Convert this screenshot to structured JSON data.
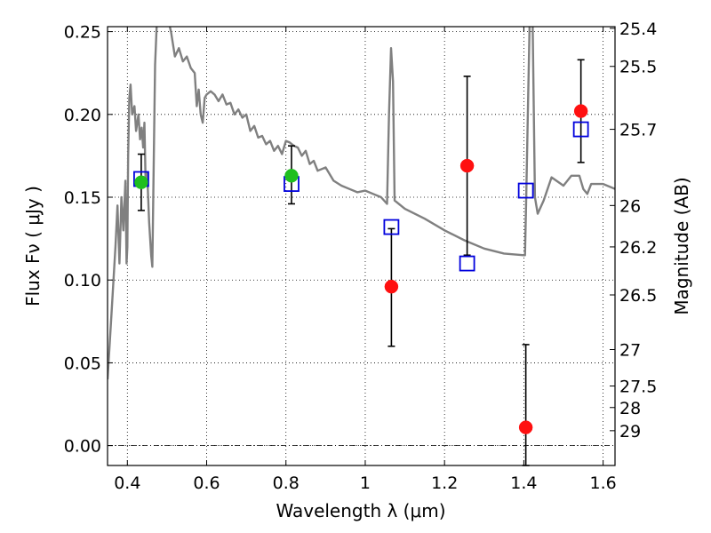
{
  "chart_data": {
    "type": "scatter",
    "title": "",
    "xlabel": "Wavelength  λ (μm)",
    "ylabel": "Flux  Fν  ( μJy )",
    "ylabel2": "Magnitude (AB)",
    "xlim": [
      0.35,
      1.63
    ],
    "ylim": [
      -0.012,
      0.253
    ],
    "grid": true,
    "legend": "none",
    "x_ticks": [
      0.4,
      0.6,
      0.8,
      1.0,
      1.2,
      1.4,
      1.6
    ],
    "x_tick_labels": [
      "0.4",
      "0.6",
      "0.8",
      "1",
      "1.2",
      "1.4",
      "1.6"
    ],
    "y_ticks": [
      0.0,
      0.05,
      0.1,
      0.15,
      0.2,
      0.25
    ],
    "y_tick_labels": [
      "0.00",
      "0.05",
      "0.10",
      "0.15",
      "0.20",
      "0.25"
    ],
    "mag_ticks": [
      {
        "label": "25.4",
        "flux": 0.252
      },
      {
        "label": "25.5",
        "flux": 0.229
      },
      {
        "label": "25.7",
        "flux": 0.191
      },
      {
        "label": "26",
        "flux": 0.145
      },
      {
        "label": "26.2",
        "flux": 0.12
      },
      {
        "label": "26.5",
        "flux": 0.091
      },
      {
        "label": "27",
        "flux": 0.058
      },
      {
        "label": "27.5",
        "flux": 0.036
      },
      {
        "label": "28",
        "flux": 0.023
      },
      {
        "label": "29",
        "flux": 0.009
      }
    ],
    "series": [
      {
        "marker": "circle",
        "color": "#1fbf1f",
        "points": [
          {
            "x": 0.435,
            "y": 0.159,
            "ylo": 0.142,
            "yhi": 0.176
          },
          {
            "x": 0.814,
            "y": 0.163,
            "ylo": 0.146,
            "yhi": 0.181
          }
        ]
      },
      {
        "marker": "circle",
        "color": "#ff1010",
        "points": [
          {
            "x": 1.066,
            "y": 0.096,
            "ylo": 0.06,
            "yhi": 0.131
          },
          {
            "x": 1.257,
            "y": 0.169,
            "ylo": 0.115,
            "yhi": 0.223
          },
          {
            "x": 1.405,
            "y": 0.011,
            "ylo": -0.012,
            "yhi": 0.061
          },
          {
            "x": 1.544,
            "y": 0.202,
            "ylo": 0.171,
            "yhi": 0.233
          }
        ]
      },
      {
        "marker": "square",
        "color": "#0000dd",
        "points": [
          {
            "x": 0.435,
            "y": 0.161
          },
          {
            "x": 0.814,
            "y": 0.158
          },
          {
            "x": 1.066,
            "y": 0.132
          },
          {
            "x": 1.257,
            "y": 0.11
          },
          {
            "x": 1.405,
            "y": 0.154
          },
          {
            "x": 1.544,
            "y": 0.191
          }
        ]
      },
      {
        "marker": "line",
        "color": "#808080",
        "points": [
          [
            0.35,
            0.04
          ],
          [
            0.36,
            0.08
          ],
          [
            0.37,
            0.12
          ],
          [
            0.375,
            0.145
          ],
          [
            0.38,
            0.11
          ],
          [
            0.385,
            0.15
          ],
          [
            0.39,
            0.13
          ],
          [
            0.395,
            0.16
          ],
          [
            0.398,
            0.11
          ],
          [
            0.4,
            0.12
          ],
          [
            0.402,
            0.175
          ],
          [
            0.405,
            0.21
          ],
          [
            0.408,
            0.218
          ],
          [
            0.412,
            0.2
          ],
          [
            0.418,
            0.205
          ],
          [
            0.422,
            0.19
          ],
          [
            0.428,
            0.2
          ],
          [
            0.432,
            0.185
          ],
          [
            0.436,
            0.192
          ],
          [
            0.44,
            0.18
          ],
          [
            0.443,
            0.195
          ],
          [
            0.446,
            0.16
          ],
          [
            0.45,
            0.165
          ],
          [
            0.455,
            0.135
          ],
          [
            0.46,
            0.115
          ],
          [
            0.463,
            0.108
          ],
          [
            0.466,
            0.16
          ],
          [
            0.47,
            0.23
          ],
          [
            0.475,
            0.26
          ],
          [
            0.48,
            0.27
          ],
          [
            0.49,
            0.255
          ],
          [
            0.5,
            0.26
          ],
          [
            0.51,
            0.25
          ],
          [
            0.52,
            0.235
          ],
          [
            0.53,
            0.24
          ],
          [
            0.54,
            0.232
          ],
          [
            0.55,
            0.235
          ],
          [
            0.56,
            0.228
          ],
          [
            0.57,
            0.225
          ],
          [
            0.575,
            0.205
          ],
          [
            0.58,
            0.215
          ],
          [
            0.585,
            0.2
          ],
          [
            0.59,
            0.195
          ],
          [
            0.595,
            0.21
          ],
          [
            0.6,
            0.212
          ],
          [
            0.61,
            0.214
          ],
          [
            0.62,
            0.212
          ],
          [
            0.63,
            0.208
          ],
          [
            0.64,
            0.212
          ],
          [
            0.65,
            0.206
          ],
          [
            0.66,
            0.207
          ],
          [
            0.67,
            0.2
          ],
          [
            0.68,
            0.203
          ],
          [
            0.69,
            0.198
          ],
          [
            0.7,
            0.2
          ],
          [
            0.71,
            0.19
          ],
          [
            0.72,
            0.193
          ],
          [
            0.73,
            0.186
          ],
          [
            0.74,
            0.187
          ],
          [
            0.75,
            0.182
          ],
          [
            0.76,
            0.184
          ],
          [
            0.77,
            0.178
          ],
          [
            0.78,
            0.181
          ],
          [
            0.79,
            0.176
          ],
          [
            0.8,
            0.184
          ],
          [
            0.81,
            0.183
          ],
          [
            0.82,
            0.181
          ],
          [
            0.83,
            0.18
          ],
          [
            0.84,
            0.175
          ],
          [
            0.85,
            0.178
          ],
          [
            0.86,
            0.17
          ],
          [
            0.87,
            0.172
          ],
          [
            0.88,
            0.166
          ],
          [
            0.9,
            0.168
          ],
          [
            0.92,
            0.16
          ],
          [
            0.94,
            0.157
          ],
          [
            0.96,
            0.155
          ],
          [
            0.98,
            0.153
          ],
          [
            1.0,
            0.154
          ],
          [
            1.02,
            0.152
          ],
          [
            1.04,
            0.15
          ],
          [
            1.055,
            0.146
          ],
          [
            1.06,
            0.2
          ],
          [
            1.065,
            0.24
          ],
          [
            1.07,
            0.22
          ],
          [
            1.074,
            0.148
          ],
          [
            1.1,
            0.143
          ],
          [
            1.15,
            0.137
          ],
          [
            1.2,
            0.13
          ],
          [
            1.25,
            0.124
          ],
          [
            1.3,
            0.119
          ],
          [
            1.35,
            0.116
          ],
          [
            1.4,
            0.115
          ],
          [
            1.403,
            0.115
          ],
          [
            1.406,
            0.15
          ],
          [
            1.41,
            0.2
          ],
          [
            1.415,
            0.26
          ],
          [
            1.422,
            0.26
          ],
          [
            1.428,
            0.15
          ],
          [
            1.435,
            0.14
          ],
          [
            1.45,
            0.148
          ],
          [
            1.47,
            0.162
          ],
          [
            1.5,
            0.157
          ],
          [
            1.52,
            0.163
          ],
          [
            1.54,
            0.163
          ],
          [
            1.55,
            0.155
          ],
          [
            1.56,
            0.152
          ],
          [
            1.57,
            0.158
          ],
          [
            1.6,
            0.158
          ],
          [
            1.63,
            0.155
          ]
        ]
      }
    ]
  }
}
